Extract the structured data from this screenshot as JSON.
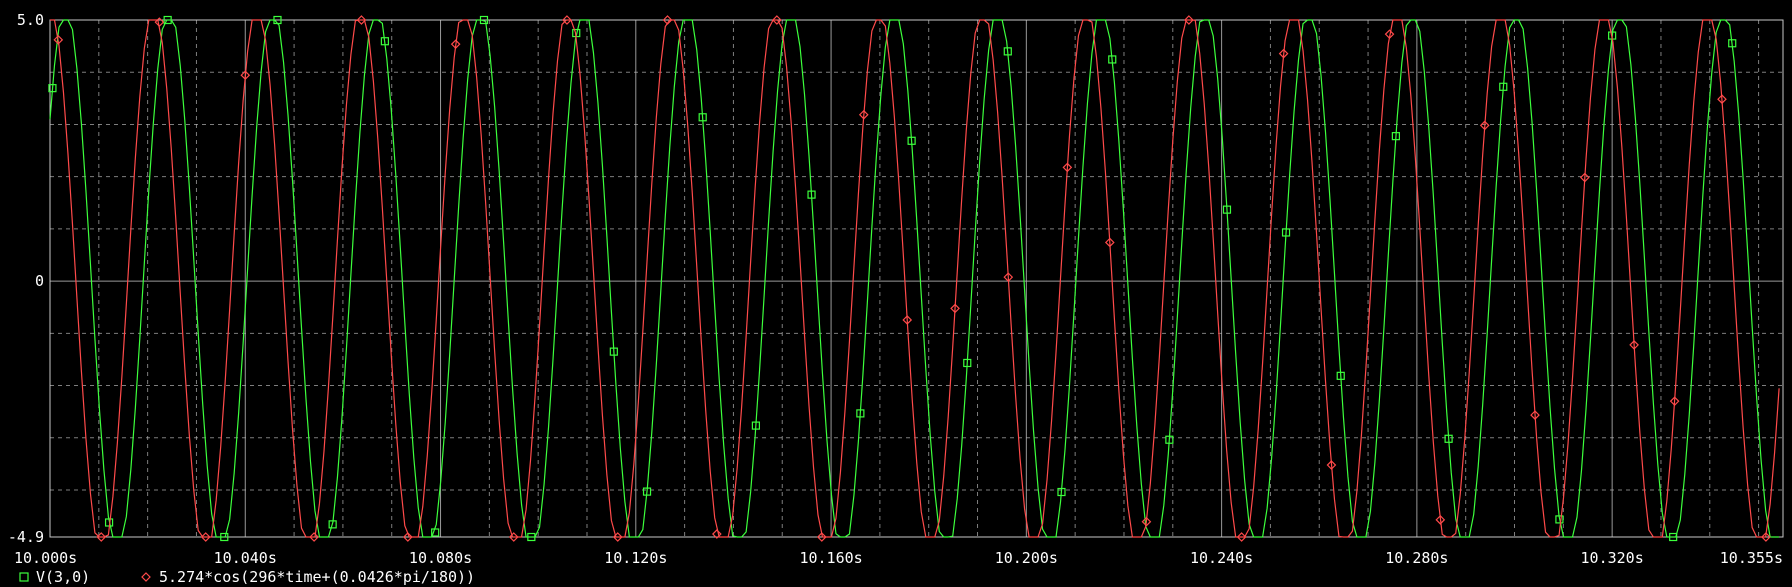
{
  "chart_data": {
    "type": "line",
    "xlim": [
      10.0,
      10.355
    ],
    "ylim": [
      -4.9,
      5.0
    ],
    "x_tick_labels": [
      "10.000s",
      "10.040s",
      "10.080s",
      "10.120s",
      "10.160s",
      "10.200s",
      "10.240s",
      "10.280s",
      "10.320s",
      "10.355s"
    ],
    "x_tick_values": [
      10.0,
      10.04,
      10.08,
      10.12,
      10.16,
      10.2,
      10.24,
      10.28,
      10.32,
      10.355
    ],
    "y_tick_labels": [
      "5.0",
      "0",
      "-4.9"
    ],
    "y_tick_values": [
      5.0,
      0,
      -4.9
    ],
    "x_gridlines": [
      10.0,
      10.01,
      10.02,
      10.03,
      10.04,
      10.05,
      10.06,
      10.07,
      10.08,
      10.09,
      10.1,
      10.11,
      10.12,
      10.13,
      10.14,
      10.15,
      10.16,
      10.17,
      10.18,
      10.19,
      10.2,
      10.21,
      10.22,
      10.23,
      10.24,
      10.25,
      10.26,
      10.27,
      10.28,
      10.29,
      10.3,
      10.31,
      10.32,
      10.33,
      10.34,
      10.35
    ],
    "y_gridlines": [
      5.0,
      4.0,
      3.0,
      2.0,
      1.0,
      0,
      -1.0,
      -2.0,
      -3.0,
      -4.0
    ],
    "grid": true,
    "series": [
      {
        "name": "V(3,0)",
        "color": "#3cff3c",
        "marker": "square",
        "amplitude": 5.274,
        "frequency_hz": 47.11,
        "phase_deg": -54,
        "clip": [
          -4.9,
          5.0
        ],
        "marker_x": [
          10.0005,
          10.0121,
          10.0241,
          10.0357,
          10.0466,
          10.0579,
          10.0686,
          10.0789,
          10.0889,
          10.0986,
          10.1078,
          10.1155,
          10.1223,
          10.1337,
          10.1446,
          10.156,
          10.166,
          10.1765,
          10.1879,
          10.1962,
          10.2072,
          10.2176,
          10.2293,
          10.2411,
          10.2532,
          10.2644,
          10.2757,
          10.2865,
          10.2977,
          10.3092,
          10.32,
          10.3325,
          10.3446
        ]
      },
      {
        "name": "5.274*cos(296*time+(0.0426*pi/180))",
        "color": "#ff4a4a",
        "marker": "diamond",
        "amplitude": 5.274,
        "frequency_hz": 47.11,
        "phase_deg": 0,
        "clip": [
          -4.9,
          5.0
        ],
        "marker_x": [
          10.0017,
          10.0105,
          10.0224,
          10.0319,
          10.04,
          10.0541,
          10.0638,
          10.0733,
          10.0831,
          10.095,
          10.1059,
          10.1163,
          10.1265,
          10.1366,
          10.1489,
          10.1581,
          10.1667,
          10.1756,
          10.1854,
          10.1963,
          10.2084,
          10.2171,
          10.2246,
          10.2333,
          10.2441,
          10.2527,
          10.2625,
          10.2744,
          10.2848,
          10.2939,
          10.3042,
          10.3144,
          10.3245,
          10.3328,
          10.3425,
          10.3515
        ]
      }
    ]
  }
}
